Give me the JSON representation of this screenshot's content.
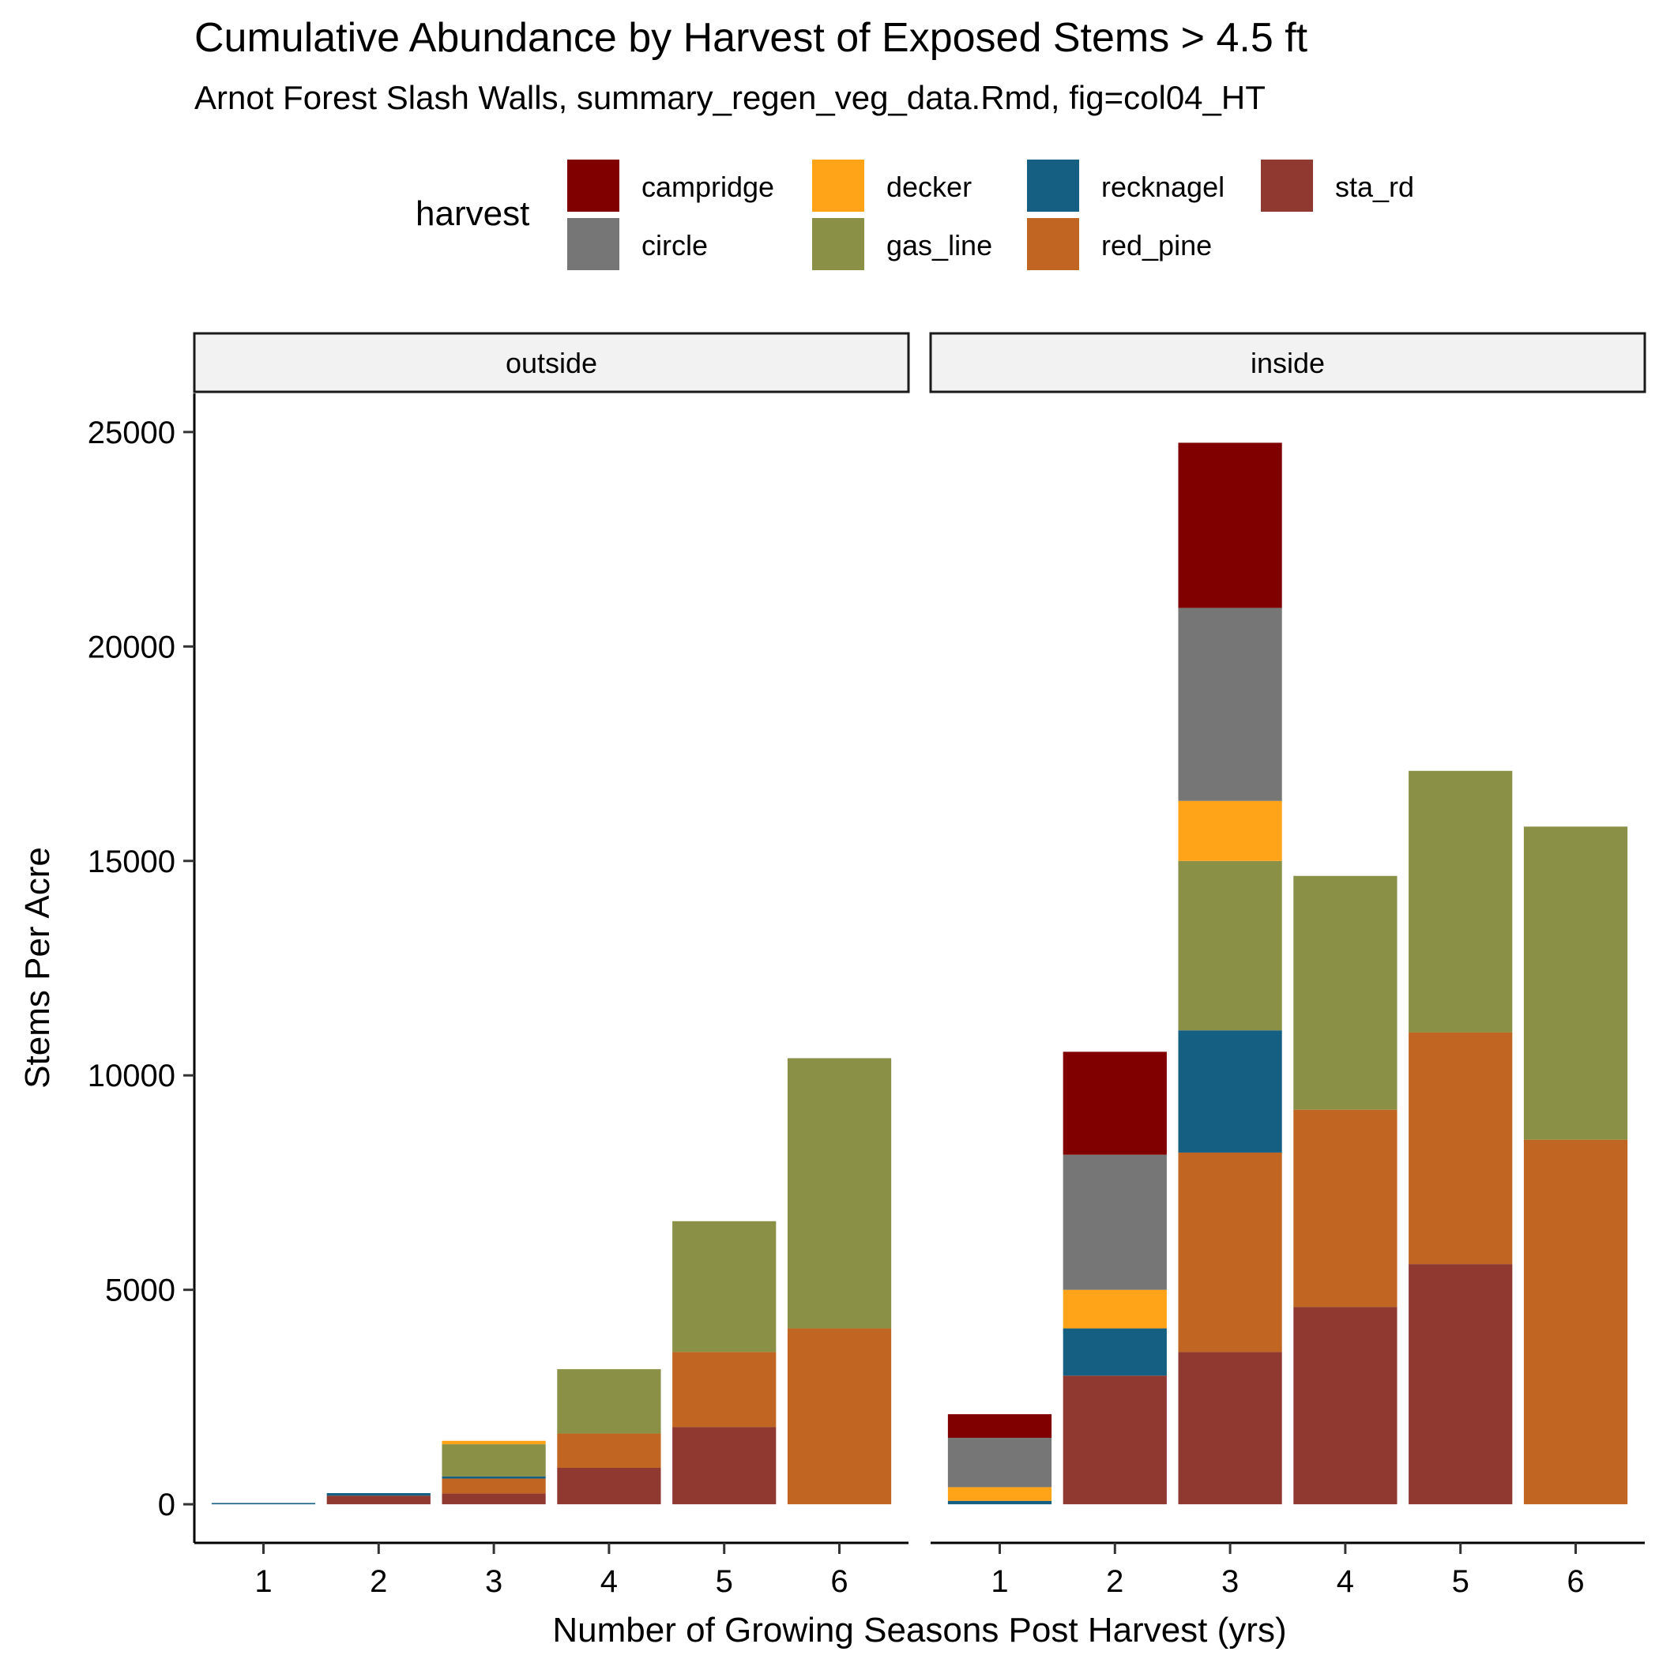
{
  "chart_data": {
    "type": "bar",
    "stacked": true,
    "title": "Cumulative Abundance by Harvest of Exposed Stems > 4.5 ft",
    "subtitle": "Arnot Forest Slash Walls, summary_regen_veg_data.Rmd, fig=col04_HT",
    "xlabel": "Number of Growing Seasons Post Harvest (yrs)",
    "ylabel": "Stems Per Acre",
    "ylim": [
      -900,
      25900
    ],
    "yticks": [
      0,
      5000,
      10000,
      15000,
      20000,
      25000
    ],
    "categories": [
      "1",
      "2",
      "3",
      "4",
      "5",
      "6"
    ],
    "grid": false,
    "legend": {
      "title": "harvest",
      "position": "top",
      "items": [
        {
          "name": "campridge",
          "color": "#800000"
        },
        {
          "name": "circle",
          "color": "#767676"
        },
        {
          "name": "decker",
          "color": "#FFA319"
        },
        {
          "name": "gas_line",
          "color": "#8A9045"
        },
        {
          "name": "recknagel",
          "color": "#155F83"
        },
        {
          "name": "red_pine",
          "color": "#C16622"
        },
        {
          "name": "sta_rd",
          "color": "#8F3931"
        }
      ]
    },
    "stack_order_bottom_to_top": [
      "sta_rd",
      "red_pine",
      "recknagel",
      "gas_line",
      "decker",
      "circle",
      "campridge"
    ],
    "panels": [
      {
        "label": "outside",
        "series": [
          {
            "name": "sta_rd",
            "values": [
              0,
              200,
              250,
              850,
              1800,
              0
            ]
          },
          {
            "name": "red_pine",
            "values": [
              0,
              0,
              350,
              800,
              1750,
              4100
            ]
          },
          {
            "name": "recknagel",
            "values": [
              30,
              60,
              50,
              0,
              0,
              0
            ]
          },
          {
            "name": "gas_line",
            "values": [
              0,
              0,
              750,
              1500,
              3050,
              6300
            ]
          },
          {
            "name": "decker",
            "values": [
              0,
              0,
              80,
              0,
              0,
              0
            ]
          },
          {
            "name": "circle",
            "values": [
              0,
              0,
              0,
              0,
              0,
              0
            ]
          },
          {
            "name": "campridge",
            "values": [
              0,
              0,
              0,
              0,
              0,
              0
            ]
          }
        ]
      },
      {
        "label": "inside",
        "series": [
          {
            "name": "sta_rd",
            "values": [
              0,
              3000,
              3550,
              4600,
              5600,
              0
            ]
          },
          {
            "name": "red_pine",
            "values": [
              0,
              0,
              4650,
              4600,
              5400,
              8500
            ]
          },
          {
            "name": "recknagel",
            "values": [
              80,
              1100,
              2850,
              0,
              0,
              0
            ]
          },
          {
            "name": "gas_line",
            "values": [
              0,
              0,
              3950,
              5450,
              6100,
              7300
            ]
          },
          {
            "name": "decker",
            "values": [
              320,
              900,
              1400,
              0,
              0,
              0
            ]
          },
          {
            "name": "circle",
            "values": [
              1150,
              3150,
              4500,
              0,
              0,
              0
            ]
          },
          {
            "name": "campridge",
            "values": [
              550,
              2400,
              3850,
              0,
              0,
              0
            ]
          }
        ]
      }
    ]
  }
}
